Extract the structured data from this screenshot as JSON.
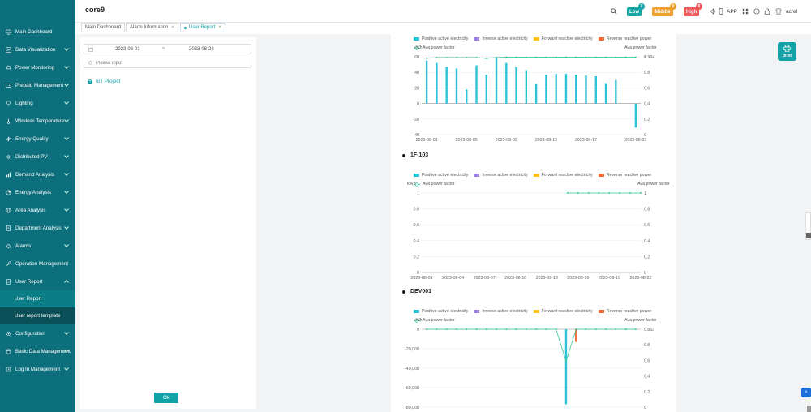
{
  "header": {
    "app_title": "core9",
    "alarm_low": {
      "label": "Low",
      "count": "0",
      "color": "#1aa5a5"
    },
    "alarm_middle": {
      "label": "Middle",
      "count": "0",
      "color": "#f0a030"
    },
    "alarm_high": {
      "label": "High",
      "count": "0",
      "color": "#f05a5a"
    },
    "app_label": "APP",
    "user_name": "acrel"
  },
  "sidebar": {
    "items": [
      {
        "label": "Main Dashboard",
        "icon": "monitor-icon",
        "chevron": false
      },
      {
        "label": "Data Visualization",
        "icon": "chart-icon",
        "chevron": true
      },
      {
        "label": "Power Monitoring",
        "icon": "plug-icon",
        "chevron": true
      },
      {
        "label": "Prepaid Management",
        "icon": "wallet-icon",
        "chevron": true
      },
      {
        "label": "Lighting",
        "icon": "bulb-icon",
        "chevron": true
      },
      {
        "label": "Wireless Temperature",
        "icon": "thermometer-icon",
        "chevron": true
      },
      {
        "label": "Energy Quality",
        "icon": "bolt-icon",
        "chevron": true
      },
      {
        "label": "Distributed PV",
        "icon": "sun-icon",
        "chevron": true
      },
      {
        "label": "Demand Analysis",
        "icon": "bars-icon",
        "chevron": true
      },
      {
        "label": "Energy Analysis",
        "icon": "pie-icon",
        "chevron": true
      },
      {
        "label": "Area Analysis",
        "icon": "globe-icon",
        "chevron": true
      },
      {
        "label": "Department Analysis",
        "icon": "building-icon",
        "chevron": true
      },
      {
        "label": "Alarms",
        "icon": "bell-icon",
        "chevron": true
      },
      {
        "label": "Operation Management",
        "icon": "wrench-icon",
        "chevron": false
      }
    ],
    "user_report": {
      "label": "User Report",
      "icon": "document-icon"
    },
    "sub_items": [
      "User Report",
      "User report template"
    ],
    "items_after": [
      {
        "label": "Configuration",
        "icon": "gear-icon",
        "chevron": true
      },
      {
        "label": "Basic Data Management",
        "icon": "database-icon",
        "chevron": true
      },
      {
        "label": "Log In Management",
        "icon": "log-icon",
        "chevron": true
      }
    ]
  },
  "tabs": [
    "Main Dashboard",
    "Alarm Information",
    "User Report"
  ],
  "filters": {
    "start_date": "2023-08-01",
    "separator": "~",
    "end_date": "2023-08-22",
    "search_placeholder": "Please input",
    "tree_root": "IoT Project",
    "ok_label": "Ok"
  },
  "print_label": "print",
  "legend": {
    "positive": "Positive active electricity",
    "inverse": "Inverse active electricity",
    "forward": "Forward reactive electricity",
    "reverse": "Reverse reactive power",
    "kwh": "kWh",
    "pf": "Ava power factor",
    "colors": {
      "positive": "#2cc3d8",
      "inverse": "#9b7fe0",
      "forward": "#f5c518",
      "reverse": "#ee6b3a",
      "pf": "#36c9a3"
    }
  },
  "charts": [
    {
      "name": "",
      "type": "bar",
      "y_ticks": [
        "60",
        "40",
        "20",
        "0",
        "-20",
        "-40"
      ],
      "y_range": [
        -40,
        60
      ],
      "pf_ticks": [
        "1",
        "0.8",
        "0.6",
        "0.4",
        "0.2",
        "0"
      ],
      "pf_range": [
        0,
        1
      ],
      "x_labels": [
        "2023-08-01",
        "2023-08-05",
        "2023-08-09",
        "2023-08-13",
        "2023-08-17",
        "2023-08-22"
      ],
      "x_label_index": [
        0,
        4,
        8,
        12,
        16,
        21
      ],
      "positive": [
        55,
        52,
        47,
        45,
        18,
        49,
        37,
        58,
        52,
        47,
        43,
        25,
        37,
        38,
        38,
        37,
        36,
        35,
        26,
        30,
        0,
        0
      ],
      "reverse": [],
      "negative_positive": [
        0,
        0,
        0,
        0,
        0,
        0,
        0,
        0,
        0,
        0,
        0,
        0,
        0,
        0,
        0,
        0,
        0,
        0,
        0,
        0,
        0,
        -31
      ],
      "pf": [
        0.98,
        0.99,
        0.99,
        0.99,
        0.99,
        0.99,
        0.98,
        0.99,
        0.994,
        0.994,
        0.994,
        0.994,
        0.994,
        0.994,
        0.994,
        0.994,
        0.994,
        0.994,
        0.994,
        0.994,
        0.994,
        0.994
      ],
      "pf_label": "0.994"
    },
    {
      "name": "1F-103",
      "type": "line",
      "y_ticks": [
        "1",
        "0.8",
        "0.6",
        "0.4",
        "0.2",
        "0"
      ],
      "y_range": [
        0,
        1
      ],
      "pf_ticks": [
        "1",
        "0.8",
        "0.6",
        "0.4",
        "0.2",
        "0"
      ],
      "pf_range": [
        0,
        1
      ],
      "x_labels": [
        "2023-08-01",
        "2023-08-04",
        "2023-08-07",
        "2023-08-10",
        "2023-08-13",
        "2023-08-16",
        "2023-08-19",
        "2023-08-22"
      ],
      "x_label_index": [
        0,
        3,
        6,
        9,
        12,
        15,
        18,
        21
      ],
      "pf_points": [
        [
          14,
          1
        ],
        [
          15,
          1
        ],
        [
          16,
          1
        ],
        [
          17,
          1
        ],
        [
          18,
          1
        ],
        [
          19,
          1
        ],
        [
          20,
          1
        ],
        [
          21,
          1
        ]
      ],
      "pf_label": "1"
    },
    {
      "name": "DEV001",
      "type": "bar",
      "y_ticks": [
        "0",
        "-20,000",
        "-40,000",
        "-60,000",
        "-80,000"
      ],
      "y_range": [
        -80000,
        0
      ],
      "pf_ticks": [
        "0.852",
        "0.8",
        "0.6",
        "0.4",
        "0.2",
        "0"
      ],
      "pf_range": [
        0,
        1
      ],
      "x_labels": [],
      "x_label_index": [],
      "positive_spike": {
        "index": 14,
        "value": -77000
      },
      "reverse_spike": {
        "index": 15,
        "value": -13000
      },
      "pf_label": "0.852",
      "pf": [
        0.852,
        0.852,
        0.852,
        0.852,
        0.852,
        0.852,
        0.852,
        0.852,
        0.852,
        0.852,
        0.852,
        0.852,
        0.852,
        0.852,
        0.5,
        0.852,
        0.852,
        0.852,
        0.852,
        0.852,
        0.852,
        0.852
      ]
    }
  ]
}
